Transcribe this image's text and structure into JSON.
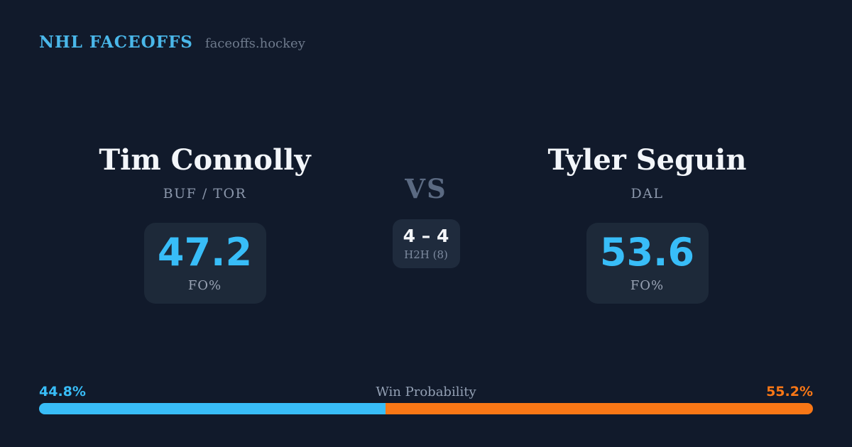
{
  "header": {
    "brand": "NHL FACEOFFS",
    "site": "faceoffs.hockey"
  },
  "matchup": {
    "vs_label": "VS",
    "h2h": {
      "score": "4 – 4",
      "label": "H2H (8)"
    },
    "players": [
      {
        "name": "Tim Connolly",
        "teams": "BUF / TOR",
        "fo_pct": "47.2",
        "stat_label": "FO%"
      },
      {
        "name": "Tyler Seguin",
        "teams": "DAL",
        "fo_pct": "53.6",
        "stat_label": "FO%"
      }
    ]
  },
  "win_probability": {
    "label": "Win Probability",
    "left_pct": "44.8%",
    "right_pct": "55.2%",
    "left_value": 44.8,
    "right_value": 55.2,
    "left_color": "#38bdf8",
    "right_color": "#f97716"
  },
  "colors": {
    "background": "#111a2b",
    "card_background": "#1d2939",
    "accent_blue": "#38bdf8",
    "accent_orange": "#f97716",
    "brand_blue": "#4ab7e9",
    "text_primary": "#f3f6fa",
    "text_muted": "#8b97ab"
  }
}
